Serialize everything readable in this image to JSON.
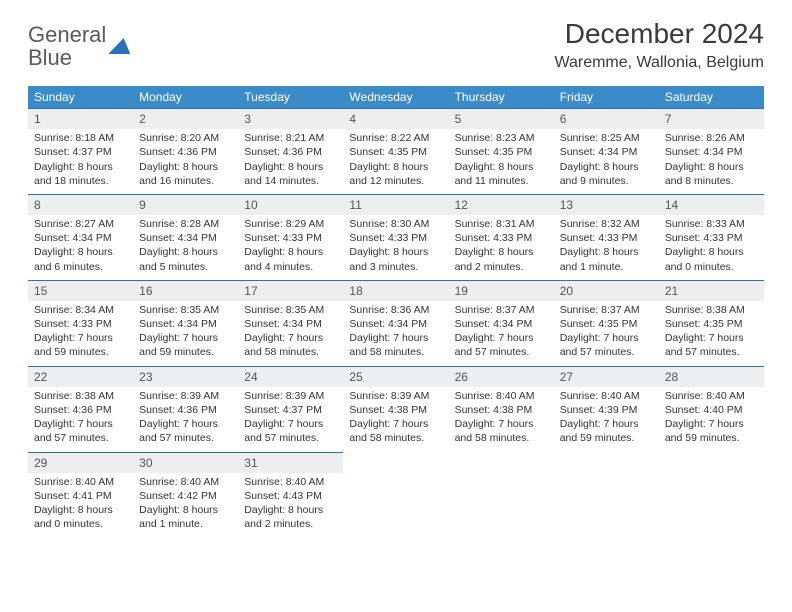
{
  "logo": {
    "line1": "General",
    "line2": "Blue"
  },
  "title": "December 2024",
  "location": "Waremme, Wallonia, Belgium",
  "colors": {
    "header_bg": "#3b8bc9",
    "header_text": "#ffffff",
    "daynum_bg": "#eceef0",
    "daynum_border": "#2a71b8",
    "logo_gray": "#5a5a5a",
    "logo_blue": "#2a71b8"
  },
  "fonts": {
    "title_pt": 28,
    "location_pt": 16,
    "dayhead_pt": 12,
    "cell_pt": 10.5
  },
  "day_headers": [
    "Sunday",
    "Monday",
    "Tuesday",
    "Wednesday",
    "Thursday",
    "Friday",
    "Saturday"
  ],
  "weeks": [
    [
      {
        "n": "1",
        "sr": "8:18 AM",
        "ss": "4:37 PM",
        "dl": "8 hours and 18 minutes."
      },
      {
        "n": "2",
        "sr": "8:20 AM",
        "ss": "4:36 PM",
        "dl": "8 hours and 16 minutes."
      },
      {
        "n": "3",
        "sr": "8:21 AM",
        "ss": "4:36 PM",
        "dl": "8 hours and 14 minutes."
      },
      {
        "n": "4",
        "sr": "8:22 AM",
        "ss": "4:35 PM",
        "dl": "8 hours and 12 minutes."
      },
      {
        "n": "5",
        "sr": "8:23 AM",
        "ss": "4:35 PM",
        "dl": "8 hours and 11 minutes."
      },
      {
        "n": "6",
        "sr": "8:25 AM",
        "ss": "4:34 PM",
        "dl": "8 hours and 9 minutes."
      },
      {
        "n": "7",
        "sr": "8:26 AM",
        "ss": "4:34 PM",
        "dl": "8 hours and 8 minutes."
      }
    ],
    [
      {
        "n": "8",
        "sr": "8:27 AM",
        "ss": "4:34 PM",
        "dl": "8 hours and 6 minutes."
      },
      {
        "n": "9",
        "sr": "8:28 AM",
        "ss": "4:34 PM",
        "dl": "8 hours and 5 minutes."
      },
      {
        "n": "10",
        "sr": "8:29 AM",
        "ss": "4:33 PM",
        "dl": "8 hours and 4 minutes."
      },
      {
        "n": "11",
        "sr": "8:30 AM",
        "ss": "4:33 PM",
        "dl": "8 hours and 3 minutes."
      },
      {
        "n": "12",
        "sr": "8:31 AM",
        "ss": "4:33 PM",
        "dl": "8 hours and 2 minutes."
      },
      {
        "n": "13",
        "sr": "8:32 AM",
        "ss": "4:33 PM",
        "dl": "8 hours and 1 minute."
      },
      {
        "n": "14",
        "sr": "8:33 AM",
        "ss": "4:33 PM",
        "dl": "8 hours and 0 minutes."
      }
    ],
    [
      {
        "n": "15",
        "sr": "8:34 AM",
        "ss": "4:33 PM",
        "dl": "7 hours and 59 minutes."
      },
      {
        "n": "16",
        "sr": "8:35 AM",
        "ss": "4:34 PM",
        "dl": "7 hours and 59 minutes."
      },
      {
        "n": "17",
        "sr": "8:35 AM",
        "ss": "4:34 PM",
        "dl": "7 hours and 58 minutes."
      },
      {
        "n": "18",
        "sr": "8:36 AM",
        "ss": "4:34 PM",
        "dl": "7 hours and 58 minutes."
      },
      {
        "n": "19",
        "sr": "8:37 AM",
        "ss": "4:34 PM",
        "dl": "7 hours and 57 minutes."
      },
      {
        "n": "20",
        "sr": "8:37 AM",
        "ss": "4:35 PM",
        "dl": "7 hours and 57 minutes."
      },
      {
        "n": "21",
        "sr": "8:38 AM",
        "ss": "4:35 PM",
        "dl": "7 hours and 57 minutes."
      }
    ],
    [
      {
        "n": "22",
        "sr": "8:38 AM",
        "ss": "4:36 PM",
        "dl": "7 hours and 57 minutes."
      },
      {
        "n": "23",
        "sr": "8:39 AM",
        "ss": "4:36 PM",
        "dl": "7 hours and 57 minutes."
      },
      {
        "n": "24",
        "sr": "8:39 AM",
        "ss": "4:37 PM",
        "dl": "7 hours and 57 minutes."
      },
      {
        "n": "25",
        "sr": "8:39 AM",
        "ss": "4:38 PM",
        "dl": "7 hours and 58 minutes."
      },
      {
        "n": "26",
        "sr": "8:40 AM",
        "ss": "4:38 PM",
        "dl": "7 hours and 58 minutes."
      },
      {
        "n": "27",
        "sr": "8:40 AM",
        "ss": "4:39 PM",
        "dl": "7 hours and 59 minutes."
      },
      {
        "n": "28",
        "sr": "8:40 AM",
        "ss": "4:40 PM",
        "dl": "7 hours and 59 minutes."
      }
    ],
    [
      {
        "n": "29",
        "sr": "8:40 AM",
        "ss": "4:41 PM",
        "dl": "8 hours and 0 minutes."
      },
      {
        "n": "30",
        "sr": "8:40 AM",
        "ss": "4:42 PM",
        "dl": "8 hours and 1 minute."
      },
      {
        "n": "31",
        "sr": "8:40 AM",
        "ss": "4:43 PM",
        "dl": "8 hours and 2 minutes."
      },
      null,
      null,
      null,
      null
    ]
  ],
  "labels": {
    "sunrise": "Sunrise: ",
    "sunset": "Sunset: ",
    "daylight": "Daylight: "
  }
}
